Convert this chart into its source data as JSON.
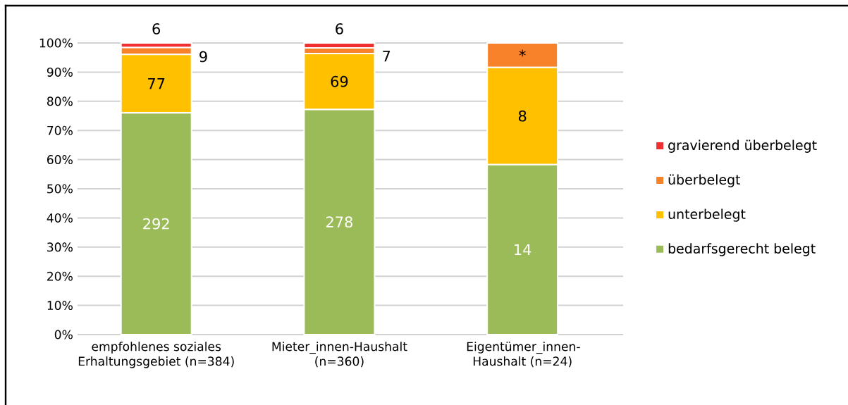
{
  "chart_data": {
    "type": "bar",
    "stacked": true,
    "categories": [
      "empfohlenes soziales Erhaltungsgebiet (n=384)",
      "Mieter_innen-Haushalt (n=360)",
      "Eigentümer_innen-Haushalt (n=24)"
    ],
    "series": [
      {
        "name": "bedarfsgerecht belegt",
        "color": "#9bbb59",
        "values": [
          76.0,
          77.2,
          58.3
        ]
      },
      {
        "name": "unterbelegt",
        "color": "#ffc000",
        "values": [
          20.1,
          19.2,
          33.3
        ]
      },
      {
        "name": "überbelegt",
        "color": "#f8822a",
        "values": [
          2.3,
          1.9,
          8.4
        ]
      },
      {
        "name": "gravierend überbelegt",
        "color": "#f03030",
        "values": [
          1.6,
          1.7,
          null
        ]
      }
    ],
    "annotations": [
      "292",
      {
        "text": "77",
        "x": "empfohlenes soziales Erhaltungsgebiet (n=384)",
        "y": 96.1
      },
      {
        "text": "9",
        "x": "empfohlenes soziales Erhaltungsgebiet (n=384)",
        "y": 98.4
      },
      {
        "text": "6",
        "x": "empfohlenes soziales Erhaltungsgebiet (n=384)",
        "y": 100.0
      },
      "278",
      {
        "text": "69",
        "x": "Mieter_innen-Haushalt (n=360)",
        "y": 96.4
      },
      {
        "text": "7",
        "x": "Mieter_innen-Haushalt (n=360)",
        "y": 98.3
      },
      {
        "text": "6",
        "x": "Mieter_innen-Haushalt (n=360)",
        "y": 100.0
      },
      "14",
      {
        "text": "8",
        "x": "Eigentümer_innen-Haushalt (n=24)",
        "y": 91.6
      },
      {
        "text": "*",
        "x": "Eigentümer_innen-Haushalt (n=24)",
        "y": 100.0
      }
    ],
    "ylim": [
      0,
      100
    ],
    "yticks": [
      {
        "value": 0,
        "label": "0%"
      },
      {
        "value": 10,
        "label": "10%"
      },
      {
        "value": 20,
        "label": "20%"
      },
      {
        "value": 30,
        "label": "30%"
      },
      {
        "value": 40,
        "label": "40%"
      },
      {
        "value": 50,
        "label": "50%"
      },
      {
        "value": 60,
        "label": "60%"
      },
      {
        "value": 70,
        "label": "70%"
      },
      {
        "value": 80,
        "label": "80%"
      },
      {
        "value": 90,
        "label": "90%"
      },
      {
        "value": 100,
        "label": "100%"
      }
    ],
    "grid": "y",
    "legend": "right"
  }
}
